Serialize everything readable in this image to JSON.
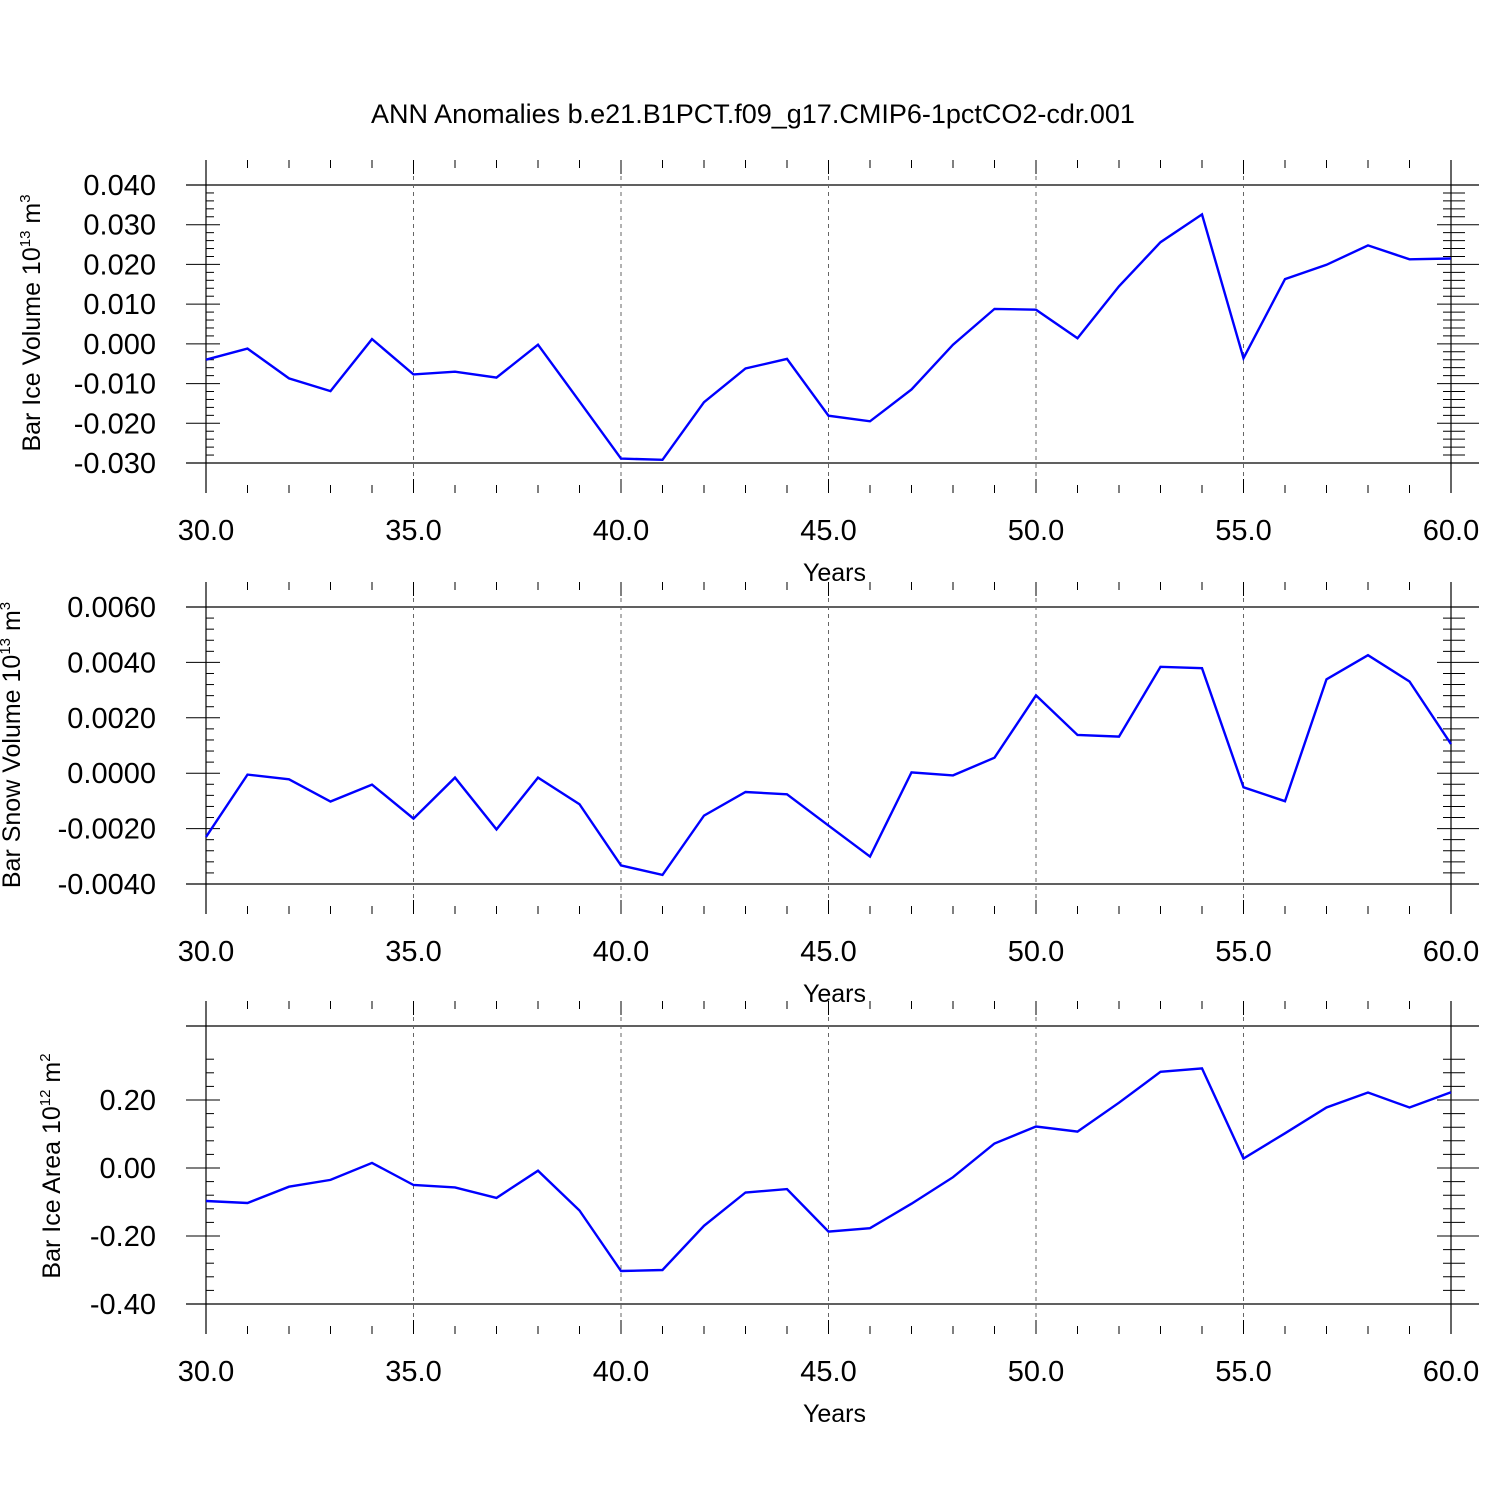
{
  "title": "ANN Anomalies b.e21.B1PCT.f09_g17.CMIP6-1pctCO2-cdr.001",
  "colors": {
    "line": "#0000ff",
    "grid": "#666666",
    "axes": "#000000"
  },
  "chart_data": [
    {
      "type": "line",
      "ylabel": {
        "text": "Bar Ice Volume 10",
        "sup": "13",
        "unit": " m",
        "unit_sup": "3"
      },
      "xlabel": "Years",
      "xlim": [
        30,
        60
      ],
      "ylim": [
        -0.03,
        0.04
      ],
      "xticks": [
        30,
        35,
        40,
        45,
        50,
        55,
        60
      ],
      "xtick_labels": [
        "30.0",
        "35.0",
        "40.0",
        "45.0",
        "50.0",
        "55.0",
        "60.0"
      ],
      "yticks": [
        -0.03,
        -0.02,
        -0.01,
        0.0,
        0.01,
        0.02,
        0.03,
        0.04
      ],
      "ytick_labels": [
        "-0.030",
        "-0.020",
        "-0.010",
        "0.000",
        "0.010",
        "0.020",
        "0.030",
        "0.040"
      ],
      "grid": "vertical dashed at major x ticks",
      "x": [
        30,
        31,
        32,
        33,
        34,
        35,
        36,
        37,
        38,
        39,
        40,
        41,
        42,
        43,
        44,
        45,
        46,
        47,
        48,
        49,
        50,
        51,
        52,
        53,
        54,
        55,
        56,
        57,
        58,
        59,
        60
      ],
      "series": [
        {
          "values": [
            -0.004,
            -0.0012,
            -0.0087,
            -0.0119,
            0.0012,
            -0.0077,
            -0.007,
            -0.0085,
            -0.0002,
            -0.0145,
            -0.0289,
            -0.0292,
            -0.0147,
            -0.0062,
            -0.0038,
            -0.0181,
            -0.0195,
            -0.0115,
            -0.0002,
            0.0088,
            0.0086,
            0.0014,
            0.0145,
            0.0256,
            0.0326,
            -0.0036,
            0.0163,
            0.0199,
            0.0248,
            0.0213,
            0.0215
          ]
        }
      ]
    },
    {
      "type": "line",
      "ylabel": {
        "text": "Bar Snow Volume 10",
        "sup": "13",
        "unit": " m",
        "unit_sup": "3"
      },
      "xlabel": "Years",
      "xlim": [
        30,
        60
      ],
      "ylim": [
        -0.004,
        0.006
      ],
      "xticks": [
        30,
        35,
        40,
        45,
        50,
        55,
        60
      ],
      "xtick_labels": [
        "30.0",
        "35.0",
        "40.0",
        "45.0",
        "50.0",
        "55.0",
        "60.0"
      ],
      "yticks": [
        -0.004,
        -0.002,
        0.0,
        0.002,
        0.004,
        0.006
      ],
      "ytick_labels": [
        "-0.0040",
        "-0.0020",
        "0.0000",
        "0.0020",
        "0.0040",
        "0.0060"
      ],
      "grid": "vertical dashed at major x ticks",
      "x": [
        30,
        31,
        32,
        33,
        34,
        35,
        36,
        37,
        38,
        39,
        40,
        41,
        42,
        43,
        44,
        45,
        46,
        47,
        48,
        49,
        50,
        51,
        52,
        53,
        54,
        55,
        56,
        57,
        58,
        59,
        60
      ],
      "series": [
        {
          "values": [
            -0.0023,
            -5e-05,
            -0.00022,
            -0.00102,
            -0.00041,
            -0.00164,
            -0.00016,
            -0.00203,
            -0.00016,
            -0.00112,
            -0.00333,
            -0.00367,
            -0.00153,
            -0.00068,
            -0.00076,
            -0.00189,
            -0.00301,
            3e-05,
            -8e-05,
            0.00056,
            0.00281,
            0.00138,
            0.00132,
            0.00384,
            0.00379,
            -0.00051,
            -0.00101,
            0.00339,
            0.00426,
            0.00331,
            0.00105
          ]
        }
      ]
    },
    {
      "type": "line",
      "ylabel": {
        "text": "Bar Ice Area 10",
        "sup": "12",
        "unit": " m",
        "unit_sup": "2"
      },
      "xlabel": "Years",
      "xlim": [
        30,
        60
      ],
      "ylim": [
        -0.4,
        0.3
      ],
      "xticks": [
        30,
        35,
        40,
        45,
        50,
        55,
        60
      ],
      "xtick_labels": [
        "30.0",
        "35.0",
        "40.0",
        "45.0",
        "50.0",
        "55.0",
        "60.0"
      ],
      "yticks": [
        -0.4,
        -0.2,
        0.0,
        0.2
      ],
      "ytick_labels": [
        "-0.40",
        "-0.20",
        "0.00",
        "0.20"
      ],
      "grid": "vertical dashed at major x ticks",
      "x": [
        30,
        31,
        32,
        33,
        34,
        35,
        36,
        37,
        38,
        39,
        40,
        41,
        42,
        43,
        44,
        45,
        46,
        47,
        48,
        49,
        50,
        51,
        52,
        53,
        54,
        55,
        56,
        57,
        58,
        59,
        60
      ],
      "series": [
        {
          "values": [
            -0.097,
            -0.103,
            -0.055,
            -0.035,
            0.015,
            -0.05,
            -0.057,
            -0.088,
            -0.008,
            -0.125,
            -0.303,
            -0.3,
            -0.17,
            -0.072,
            -0.062,
            -0.187,
            -0.177,
            -0.105,
            -0.027,
            0.072,
            0.122,
            0.107,
            0.192,
            0.283,
            0.293,
            0.028,
            0.102,
            0.178,
            0.222,
            0.178,
            0.223
          ]
        }
      ]
    }
  ]
}
